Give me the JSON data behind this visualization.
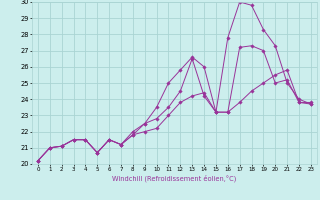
{
  "xlabel": "Windchill (Refroidissement éolien,°C)",
  "bg_color": "#cceeed",
  "grid_color": "#aad4d3",
  "line_color": "#993399",
  "xlim": [
    -0.5,
    23.5
  ],
  "ylim": [
    20,
    30
  ],
  "xticks": [
    0,
    1,
    2,
    3,
    4,
    5,
    6,
    7,
    8,
    9,
    10,
    11,
    12,
    13,
    14,
    15,
    16,
    17,
    18,
    19,
    20,
    21,
    22,
    23
  ],
  "yticks": [
    20,
    21,
    22,
    23,
    24,
    25,
    26,
    27,
    28,
    29,
    30
  ],
  "series1_x": [
    0,
    1,
    2,
    3,
    4,
    5,
    6,
    7,
    8,
    9,
    10,
    11,
    12,
    13,
    14,
    15,
    16,
    17,
    18,
    19,
    20,
    21,
    22,
    23
  ],
  "series1_y": [
    20.2,
    21.0,
    21.1,
    21.5,
    21.5,
    20.7,
    21.5,
    21.2,
    21.8,
    22.0,
    22.2,
    23.0,
    23.8,
    24.2,
    24.4,
    23.2,
    23.2,
    23.8,
    24.5,
    25.0,
    25.5,
    25.8,
    23.8,
    23.8
  ],
  "series2_x": [
    0,
    1,
    2,
    3,
    4,
    5,
    6,
    7,
    8,
    9,
    10,
    11,
    12,
    13,
    14,
    15,
    16,
    17,
    18,
    19,
    20,
    21,
    22,
    23
  ],
  "series2_y": [
    20.2,
    21.0,
    21.1,
    21.5,
    21.5,
    20.7,
    21.5,
    21.2,
    22.0,
    22.5,
    23.5,
    25.0,
    25.8,
    26.6,
    26.0,
    23.2,
    27.8,
    30.0,
    29.8,
    28.3,
    27.3,
    25.0,
    24.0,
    23.7
  ],
  "series3_x": [
    0,
    1,
    2,
    3,
    4,
    5,
    6,
    7,
    8,
    9,
    10,
    11,
    12,
    13,
    14,
    15,
    16,
    17,
    18,
    19,
    20,
    21,
    22,
    23
  ],
  "series3_y": [
    20.2,
    21.0,
    21.1,
    21.5,
    21.5,
    20.7,
    21.5,
    21.2,
    21.8,
    22.5,
    22.8,
    23.5,
    24.5,
    26.5,
    24.2,
    23.2,
    23.2,
    27.2,
    27.3,
    27.0,
    25.0,
    25.2,
    23.8,
    23.7
  ]
}
